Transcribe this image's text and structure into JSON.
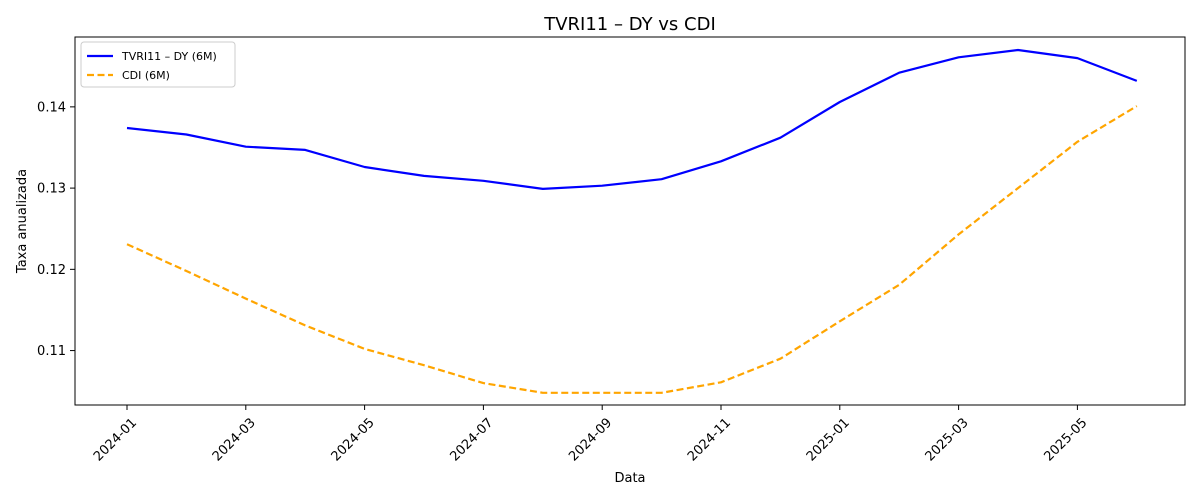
{
  "chart_data": {
    "type": "line",
    "title": "TVRI11 – DY vs CDI",
    "xlabel": "Data",
    "ylabel": "Taxa anualizada",
    "x": [
      "2024-01",
      "2024-02",
      "2024-03",
      "2024-04",
      "2024-05",
      "2024-06",
      "2024-07",
      "2024-08",
      "2024-09",
      "2024-10",
      "2024-11",
      "2024-12",
      "2025-01",
      "2025-02",
      "2025-03",
      "2025-04",
      "2025-05",
      "2025-06"
    ],
    "xticks": [
      "2024-01",
      "2024-03",
      "2024-05",
      "2024-07",
      "2024-09",
      "2024-11",
      "2025-01",
      "2025-03",
      "2025-05"
    ],
    "yticks": [
      0.11,
      0.12,
      0.13,
      0.14
    ],
    "ylim": [
      0.1033,
      0.1486
    ],
    "series": [
      {
        "name": "TVRI11 – DY (6M)",
        "color": "#0000ff",
        "dash": "solid",
        "values": [
          0.1374,
          0.1366,
          0.1351,
          0.1347,
          0.1326,
          0.1315,
          0.1309,
          0.1299,
          0.1303,
          0.1311,
          0.1333,
          0.1362,
          0.1406,
          0.1442,
          0.1461,
          0.147,
          0.146,
          0.1432
        ]
      },
      {
        "name": "CDI (6M)",
        "color": "#ffa500",
        "dash": "dashed",
        "values": [
          0.1231,
          0.1198,
          0.1164,
          0.1131,
          0.1102,
          0.1082,
          0.106,
          0.1048,
          0.1048,
          0.1048,
          0.1061,
          0.109,
          0.1136,
          0.1181,
          0.1243,
          0.13,
          0.1357,
          0.1401
        ]
      }
    ],
    "grid": false,
    "legend_position": "top-left"
  }
}
